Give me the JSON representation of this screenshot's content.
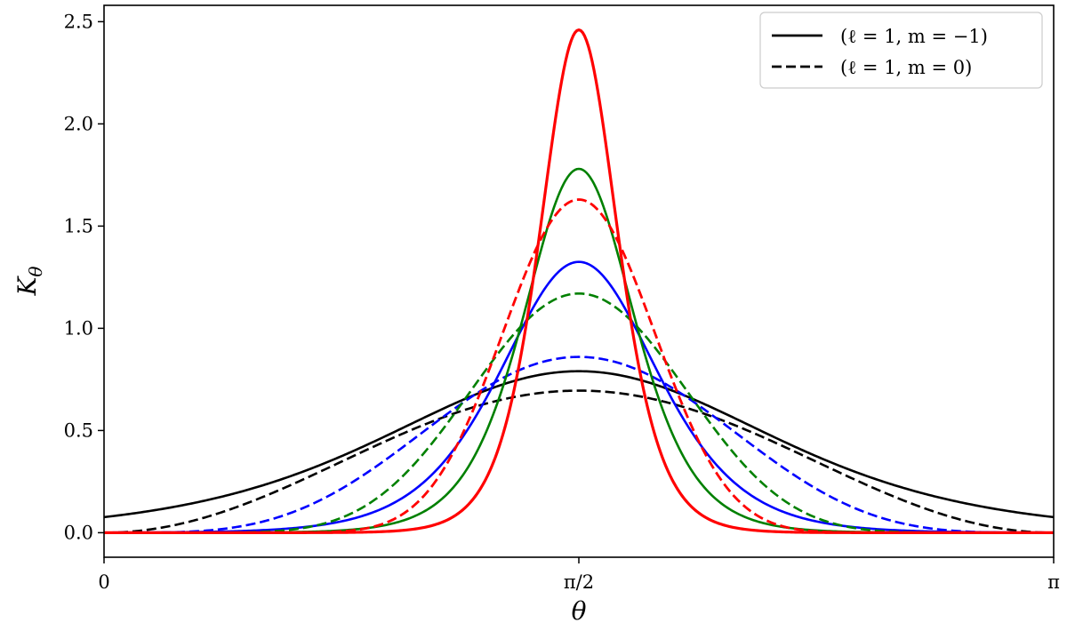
{
  "chart_data": {
    "type": "line",
    "xlabel": "θ",
    "ylabel": "K",
    "ylabel_sub": "θ",
    "x_range": [
      0,
      3.14159
    ],
    "xlim": [
      0,
      3.14159
    ],
    "ylim": [
      -0.12,
      2.58
    ],
    "x_ticks": [
      {
        "value": 0,
        "label": "0"
      },
      {
        "value": 1.5708,
        "label": "π/2"
      },
      {
        "value": 3.14159,
        "label": "π"
      }
    ],
    "y_ticks": [
      {
        "value": 0.0,
        "label": "0.0"
      },
      {
        "value": 0.5,
        "label": "0.5"
      },
      {
        "value": 1.0,
        "label": "1.0"
      },
      {
        "value": 1.5,
        "label": "1.5"
      },
      {
        "value": 2.0,
        "label": "2.0"
      },
      {
        "value": 2.5,
        "label": "2.5"
      }
    ],
    "grid": false,
    "legend_position": "top-right",
    "legend": [
      {
        "label": "(ℓ = 1, m = −1)",
        "style": "solid"
      },
      {
        "label": "(ℓ = 1, m = 0)",
        "style": "dashed"
      }
    ],
    "series": [
      {
        "color": "#000000",
        "style": "solid",
        "width": 2.6,
        "formula": "sech_power",
        "amplitude": 0.79,
        "k": 1.17,
        "p": 1
      },
      {
        "color": "#000000",
        "style": "dashed",
        "width": 2.6,
        "formula": "sin_power",
        "amplitude": 0.695,
        "p": 2
      },
      {
        "color": "#0000ff",
        "style": "solid",
        "width": 2.6,
        "formula": "sech_power",
        "amplitude": 1.325,
        "k": 2.89,
        "p": 1
      },
      {
        "color": "#0000ff",
        "style": "dashed",
        "width": 2.6,
        "formula": "sin_power",
        "amplitude": 0.86,
        "p": 4
      },
      {
        "color": "#008000",
        "style": "solid",
        "width": 2.6,
        "formula": "sech_power",
        "amplitude": 1.78,
        "k": 4.1,
        "p": 1
      },
      {
        "color": "#008000",
        "style": "dashed",
        "width": 2.6,
        "formula": "sin_power",
        "amplitude": 1.17,
        "p": 8
      },
      {
        "color": "#ff0000",
        "style": "solid",
        "width": 3.2,
        "formula": "sech_power",
        "amplitude": 2.46,
        "k": 5.8,
        "p": 1
      },
      {
        "color": "#ff0000",
        "style": "dashed",
        "width": 2.8,
        "formula": "sin_power",
        "amplitude": 1.63,
        "p": 16
      }
    ]
  }
}
